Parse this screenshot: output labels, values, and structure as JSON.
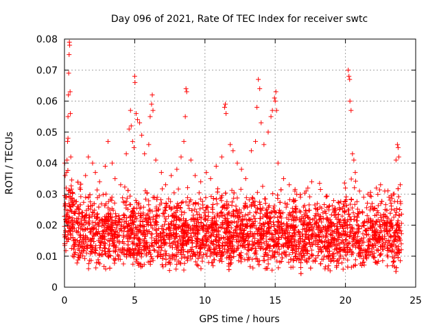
{
  "chart_data": {
    "type": "scatter",
    "title": "Day 096 of 2021, Rate Of TEC Index for receiver swtc",
    "xlabel": "GPS time / hours",
    "ylabel": "ROTI / TECUs",
    "xlim": [
      0,
      25
    ],
    "ylim": [
      0,
      0.08
    ],
    "x_ticks": [
      "0",
      "5",
      "10",
      "15",
      "20",
      "25"
    ],
    "y_ticks": [
      "0",
      "0.01",
      "0.02",
      "0.03",
      "0.04",
      "0.05",
      "0.06",
      "0.07",
      "0.08"
    ],
    "x_tick_values": [
      0,
      5,
      10,
      15,
      20,
      25
    ],
    "y_tick_values": [
      0,
      0.01,
      0.02,
      0.03,
      0.04,
      0.05,
      0.06,
      0.07,
      0.08
    ],
    "grid": true,
    "marker": "plus",
    "color": "#ff0000",
    "series": [
      {
        "points": [
          [
            0.02,
            0.04
          ],
          [
            0.05,
            0.036
          ],
          [
            0.08,
            0.029
          ],
          [
            0.1,
            0.025
          ],
          [
            0.12,
            0.032
          ],
          [
            0.15,
            0.037
          ],
          [
            0.18,
            0.041
          ],
          [
            0.22,
            0.047
          ],
          [
            0.25,
            0.055
          ],
          [
            0.28,
            0.062
          ],
          [
            0.3,
            0.069
          ],
          [
            0.33,
            0.075
          ],
          [
            0.35,
            0.079
          ],
          [
            0.37,
            0.078
          ],
          [
            0.4,
            0.063
          ],
          [
            0.42,
            0.056
          ],
          [
            0.45,
            0.042
          ],
          [
            0.25,
            0.048
          ],
          [
            0.3,
            0.031
          ],
          [
            0.38,
            0.026
          ],
          [
            0.7,
            0.028
          ],
          [
            1.1,
            0.032
          ],
          [
            1.5,
            0.036
          ],
          [
            1.7,
            0.042
          ],
          [
            2.0,
            0.04
          ],
          [
            2.2,
            0.037
          ],
          [
            2.5,
            0.034
          ],
          [
            2.9,
            0.039
          ],
          [
            3.1,
            0.047
          ],
          [
            3.4,
            0.04
          ],
          [
            3.6,
            0.035
          ],
          [
            4.0,
            0.033
          ],
          [
            4.4,
            0.043
          ],
          [
            4.6,
            0.051
          ],
          [
            4.7,
            0.057
          ],
          [
            4.75,
            0.052
          ],
          [
            4.85,
            0.047
          ],
          [
            4.95,
            0.045
          ],
          [
            5.0,
            0.068
          ],
          [
            5.02,
            0.066
          ],
          [
            5.1,
            0.056
          ],
          [
            5.2,
            0.054
          ],
          [
            5.35,
            0.053
          ],
          [
            5.5,
            0.049
          ],
          [
            5.7,
            0.043
          ],
          [
            6.0,
            0.046
          ],
          [
            6.1,
            0.055
          ],
          [
            6.2,
            0.059
          ],
          [
            6.25,
            0.062
          ],
          [
            6.3,
            0.057
          ],
          [
            6.5,
            0.041
          ],
          [
            6.9,
            0.037
          ],
          [
            7.2,
            0.033
          ],
          [
            7.6,
            0.036
          ],
          [
            8.0,
            0.038
          ],
          [
            8.3,
            0.042
          ],
          [
            8.5,
            0.047
          ],
          [
            8.6,
            0.055
          ],
          [
            8.65,
            0.064
          ],
          [
            8.7,
            0.063
          ],
          [
            9.0,
            0.041
          ],
          [
            9.3,
            0.036
          ],
          [
            9.7,
            0.034
          ],
          [
            10.1,
            0.037
          ],
          [
            10.4,
            0.035
          ],
          [
            10.8,
            0.039
          ],
          [
            11.2,
            0.042
          ],
          [
            11.4,
            0.058
          ],
          [
            11.45,
            0.059
          ],
          [
            11.5,
            0.056
          ],
          [
            11.8,
            0.046
          ],
          [
            12.0,
            0.044
          ],
          [
            12.3,
            0.04
          ],
          [
            12.6,
            0.038
          ],
          [
            12.9,
            0.035
          ],
          [
            13.3,
            0.044
          ],
          [
            13.6,
            0.047
          ],
          [
            13.7,
            0.058
          ],
          [
            13.8,
            0.067
          ],
          [
            13.9,
            0.064
          ],
          [
            14.0,
            0.053
          ],
          [
            14.2,
            0.046
          ],
          [
            14.5,
            0.05
          ],
          [
            14.7,
            0.055
          ],
          [
            14.8,
            0.057
          ],
          [
            14.95,
            0.061
          ],
          [
            15.0,
            0.06
          ],
          [
            15.05,
            0.063
          ],
          [
            15.1,
            0.057
          ],
          [
            15.2,
            0.04
          ],
          [
            15.6,
            0.035
          ],
          [
            16.0,
            0.033
          ],
          [
            16.4,
            0.031
          ],
          [
            16.8,
            0.029
          ],
          [
            17.2,
            0.031
          ],
          [
            17.6,
            0.034
          ],
          [
            18.0,
            0.027
          ],
          [
            18.4,
            0.024
          ],
          [
            18.8,
            0.026
          ],
          [
            19.2,
            0.024
          ],
          [
            19.6,
            0.025
          ],
          [
            20.0,
            0.032
          ],
          [
            20.2,
            0.07
          ],
          [
            20.25,
            0.068
          ],
          [
            20.3,
            0.067
          ],
          [
            20.32,
            0.06
          ],
          [
            20.4,
            0.057
          ],
          [
            20.5,
            0.043
          ],
          [
            20.6,
            0.041
          ],
          [
            20.7,
            0.037
          ],
          [
            21.0,
            0.031
          ],
          [
            21.3,
            0.029
          ],
          [
            21.6,
            0.03
          ],
          [
            21.9,
            0.027
          ],
          [
            22.2,
            0.032
          ],
          [
            22.5,
            0.033
          ],
          [
            22.8,
            0.031
          ],
          [
            23.1,
            0.029
          ],
          [
            23.4,
            0.03
          ],
          [
            23.6,
            0.041
          ],
          [
            23.7,
            0.046
          ],
          [
            23.75,
            0.045
          ],
          [
            23.8,
            0.042
          ],
          [
            23.9,
            0.033
          ]
        ],
        "band": {
          "x_range": [
            0,
            24
          ],
          "description_values": [
            0.004,
            0.033
          ]
        }
      }
    ]
  }
}
